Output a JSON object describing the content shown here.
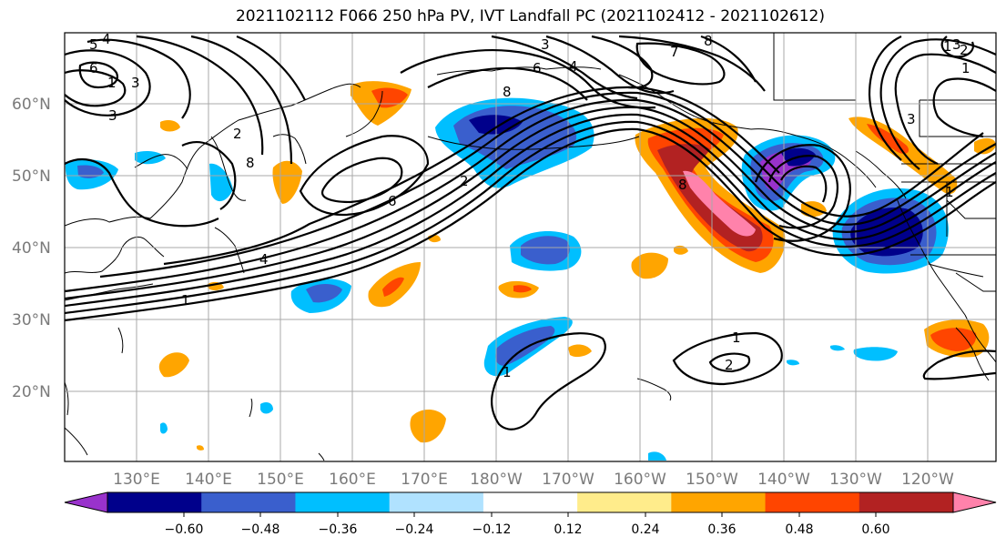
{
  "title": "2021102112 F066 250 hPa PV, IVT Landfall PC (2021102412 - 2021102612)",
  "map": {
    "lat_labels": [
      "60°N",
      "50°N",
      "40°N",
      "30°N",
      "20°N"
    ],
    "lon_labels": [
      "130°E",
      "140°E",
      "150°E",
      "160°E",
      "170°E",
      "180°W",
      "170°W",
      "160°W",
      "150°W",
      "140°W",
      "130°W",
      "120°W"
    ],
    "contour_labels": [
      "5",
      "4",
      "6",
      "1",
      "3",
      "3",
      "8",
      "2",
      "2",
      "6",
      "6",
      "4",
      "8",
      "7",
      "8",
      "3",
      "4",
      "1",
      "1",
      "1",
      "2",
      "1",
      "3",
      "1",
      "8",
      "3",
      "2",
      "1"
    ]
  },
  "colorbar": {
    "ticks": [
      "−0.60",
      "−0.48",
      "−0.36",
      "−0.24",
      "−0.12",
      "0.12",
      "0.24",
      "0.36",
      "0.48",
      "0.60"
    ],
    "colors": [
      "#9932cc",
      "#00008b",
      "#3a5fcd",
      "#00bfff",
      "#b0e2ff",
      "#ffffff",
      "#ffec8b",
      "#ffa500",
      "#ff4500",
      "#b22222",
      "#ff82ab"
    ]
  }
}
